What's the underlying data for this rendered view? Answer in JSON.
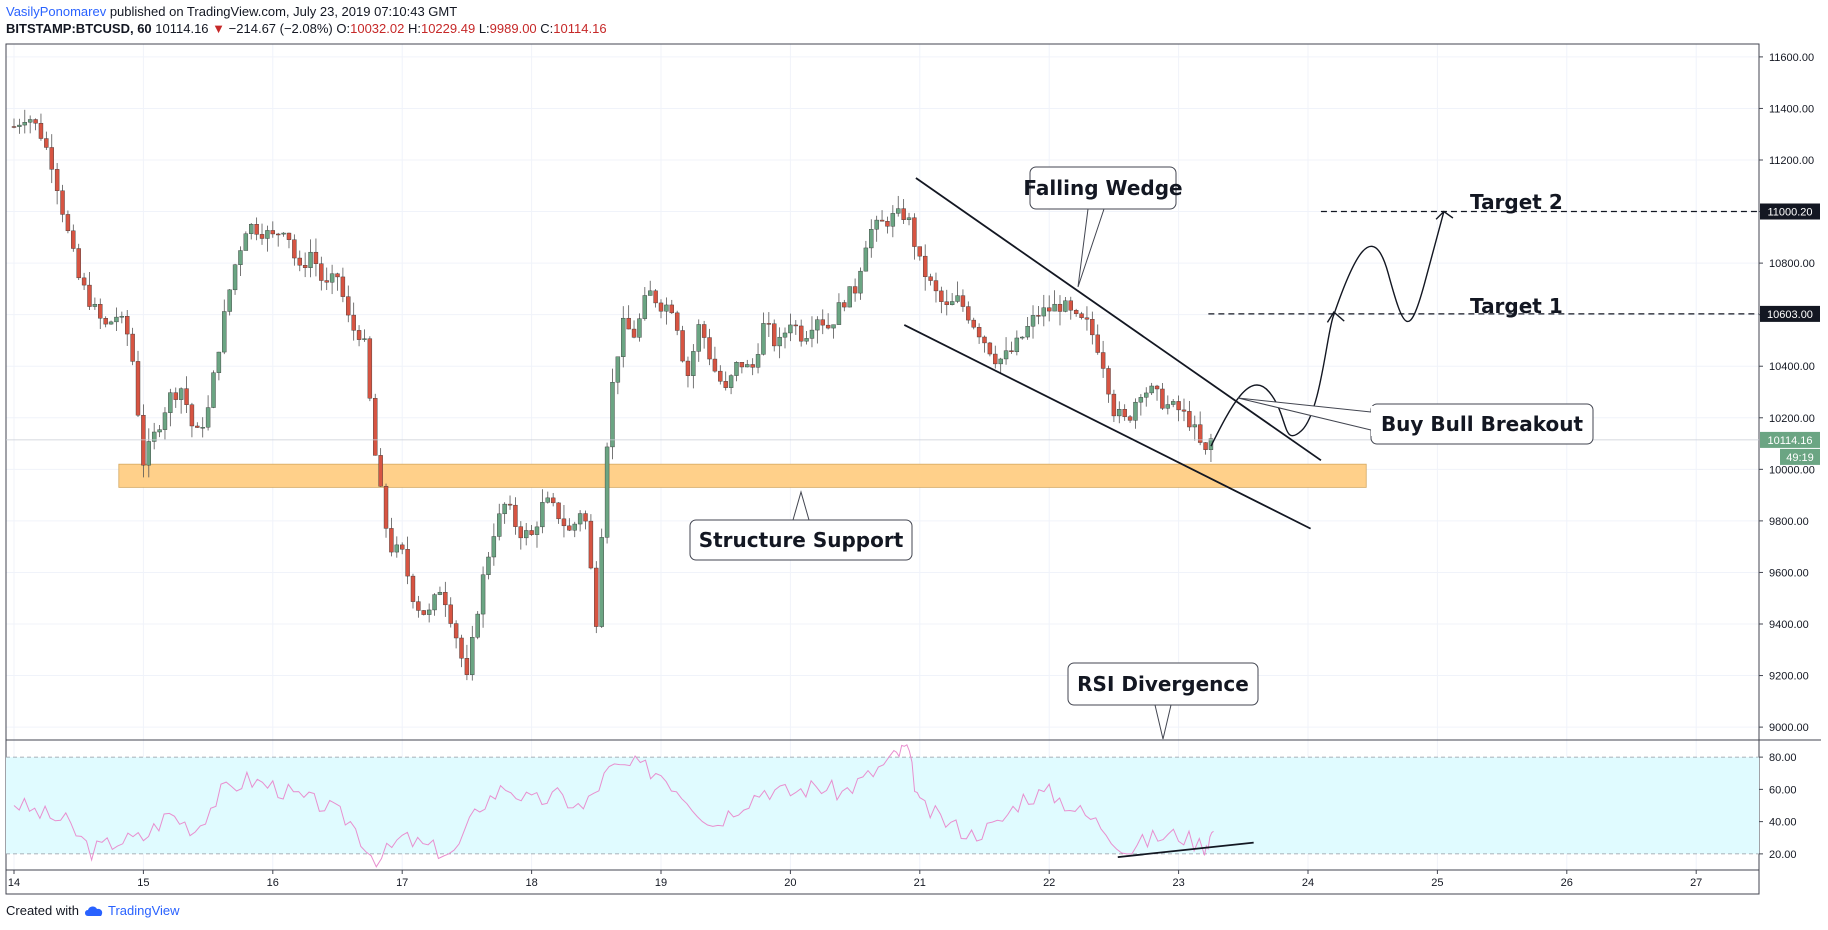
{
  "header": {
    "author": "VasilyPonomarev",
    "published": "published on TradingView.com, July 23, 2019 07:10:43 GMT",
    "symbol": "BITSTAMP:BTCUSD, 60",
    "last": "10114.16",
    "change_arrow": "▼",
    "change": "−214.67 (−2.08%)",
    "o_label": "O:",
    "o_value": "10032.02",
    "h_label": "H:",
    "h_value": "10229.49",
    "l_label": "L:",
    "l_value": "9989.00",
    "c_label": "C:",
    "c_value": "10114.16"
  },
  "footer": {
    "created_with": "Created with",
    "brand": "TradingView",
    "brand_icon": "tradingview-cloud-icon"
  },
  "colors": {
    "up": "#6ba583",
    "down": "#d75442",
    "support_zone": "#ffd08a",
    "rsi_band": "#e0fbff",
    "rsi_line": "#e88fcf",
    "price_tag": "#6ba583",
    "target_tag": "#131722"
  },
  "chart_data": {
    "type": "candlestick",
    "title": "",
    "x_ticks": [
      "14",
      "15",
      "16",
      "17",
      "18",
      "19",
      "20",
      "21",
      "22",
      "23",
      "24",
      "25",
      "26",
      "27"
    ],
    "y_ticks": [
      "11600.00",
      "11400.00",
      "11200.00",
      "11000.00",
      "10800.00",
      "10600.00",
      "10400.00",
      "10200.00",
      "10000.00",
      "9800.00",
      "9600.00",
      "9400.00",
      "9200.00",
      "9000.00"
    ],
    "ylim": [
      8950,
      11650
    ],
    "price_path": [
      [
        14.0,
        11330
      ],
      [
        14.1,
        11380
      ],
      [
        14.2,
        11310
      ],
      [
        14.3,
        11180
      ],
      [
        14.4,
        10950
      ],
      [
        14.5,
        10740
      ],
      [
        14.6,
        10640
      ],
      [
        14.7,
        10550
      ],
      [
        14.8,
        10600
      ],
      [
        14.9,
        10500
      ],
      [
        15.0,
        10030
      ],
      [
        15.1,
        10150
      ],
      [
        15.2,
        10280
      ],
      [
        15.3,
        10320
      ],
      [
        15.4,
        10120
      ],
      [
        15.5,
        10230
      ],
      [
        15.6,
        10530
      ],
      [
        15.7,
        10780
      ],
      [
        15.8,
        10950
      ],
      [
        15.9,
        10930
      ],
      [
        16.0,
        10900
      ],
      [
        16.1,
        10950
      ],
      [
        16.2,
        10760
      ],
      [
        16.3,
        10850
      ],
      [
        16.4,
        10700
      ],
      [
        16.5,
        10750
      ],
      [
        16.6,
        10550
      ],
      [
        16.7,
        10520
      ],
      [
        16.8,
        10010
      ],
      [
        16.9,
        9700
      ],
      [
        17.0,
        9670
      ],
      [
        17.1,
        9480
      ],
      [
        17.2,
        9430
      ],
      [
        17.3,
        9550
      ],
      [
        17.4,
        9390
      ],
      [
        17.5,
        9180
      ],
      [
        17.6,
        9520
      ],
      [
        17.7,
        9750
      ],
      [
        17.8,
        9870
      ],
      [
        17.9,
        9760
      ],
      [
        18.0,
        9740
      ],
      [
        18.1,
        9880
      ],
      [
        18.2,
        9830
      ],
      [
        18.3,
        9750
      ],
      [
        18.4,
        9870
      ],
      [
        18.5,
        9420
      ],
      [
        18.6,
        10250
      ],
      [
        18.7,
        10560
      ],
      [
        18.8,
        10520
      ],
      [
        18.9,
        10690
      ],
      [
        19.0,
        10640
      ],
      [
        19.1,
        10630
      ],
      [
        19.2,
        10350
      ],
      [
        19.3,
        10570
      ],
      [
        19.4,
        10400
      ],
      [
        19.5,
        10300
      ],
      [
        19.6,
        10420
      ],
      [
        19.7,
        10380
      ],
      [
        19.8,
        10570
      ],
      [
        19.9,
        10470
      ],
      [
        20.0,
        10580
      ],
      [
        20.1,
        10510
      ],
      [
        20.2,
        10600
      ],
      [
        20.3,
        10550
      ],
      [
        20.4,
        10650
      ],
      [
        20.5,
        10700
      ],
      [
        20.6,
        10920
      ],
      [
        20.7,
        10950
      ],
      [
        20.8,
        10980
      ],
      [
        20.9,
        10990
      ],
      [
        21.0,
        10800
      ],
      [
        21.1,
        10700
      ],
      [
        21.2,
        10620
      ],
      [
        21.3,
        10660
      ],
      [
        21.4,
        10580
      ],
      [
        21.5,
        10500
      ],
      [
        21.6,
        10420
      ],
      [
        21.7,
        10450
      ],
      [
        21.8,
        10520
      ],
      [
        21.9,
        10600
      ],
      [
        22.0,
        10620
      ],
      [
        22.1,
        10640
      ],
      [
        22.2,
        10580
      ],
      [
        22.3,
        10560
      ],
      [
        22.4,
        10450
      ],
      [
        22.5,
        10230
      ],
      [
        22.6,
        10180
      ],
      [
        22.7,
        10310
      ],
      [
        22.8,
        10300
      ],
      [
        22.9,
        10250
      ],
      [
        23.0,
        10230
      ],
      [
        23.1,
        10180
      ],
      [
        23.2,
        10050
      ],
      [
        23.25,
        10114
      ]
    ],
    "rsi": {
      "ticks": [
        "80.00",
        "60.00",
        "40.00",
        "20.00"
      ],
      "ylim": [
        10,
        90
      ],
      "band": [
        20,
        80
      ],
      "values": [
        [
          14.0,
          52
        ],
        [
          14.2,
          45
        ],
        [
          14.4,
          40
        ],
        [
          14.6,
          22
        ],
        [
          14.8,
          28
        ],
        [
          15.0,
          30
        ],
        [
          15.2,
          45
        ],
        [
          15.4,
          35
        ],
        [
          15.6,
          58
        ],
        [
          15.8,
          66
        ],
        [
          16.0,
          62
        ],
        [
          16.2,
          55
        ],
        [
          16.4,
          50
        ],
        [
          16.6,
          40
        ],
        [
          16.8,
          15
        ],
        [
          17.0,
          30
        ],
        [
          17.2,
          24
        ],
        [
          17.4,
          20
        ],
        [
          17.6,
          50
        ],
        [
          17.8,
          62
        ],
        [
          18.0,
          52
        ],
        [
          18.2,
          56
        ],
        [
          18.4,
          48
        ],
        [
          18.6,
          72
        ],
        [
          18.8,
          75
        ],
        [
          19.0,
          70
        ],
        [
          19.2,
          55
        ],
        [
          19.4,
          38
        ],
        [
          19.6,
          50
        ],
        [
          19.8,
          60
        ],
        [
          20.0,
          58
        ],
        [
          20.2,
          62
        ],
        [
          20.4,
          58
        ],
        [
          20.6,
          68
        ],
        [
          20.8,
          80
        ],
        [
          20.9,
          86
        ],
        [
          21.0,
          50
        ],
        [
          21.2,
          40
        ],
        [
          21.4,
          32
        ],
        [
          21.6,
          38
        ],
        [
          21.8,
          55
        ],
        [
          22.0,
          58
        ],
        [
          22.2,
          48
        ],
        [
          22.4,
          38
        ],
        [
          22.6,
          22
        ],
        [
          22.8,
          30
        ],
        [
          23.0,
          32
        ],
        [
          23.2,
          25
        ],
        [
          23.27,
          34
        ]
      ]
    },
    "support_zone": [
      9930,
      10020
    ],
    "annotations": {
      "falling_wedge": "Falling Wedge",
      "structure_support": "Structure Support",
      "buy_bull_breakout": "Buy Bull Breakout",
      "rsi_divergence": "RSI Divergence",
      "target1": "Target 1",
      "target2": "Target 2"
    },
    "price_tags": {
      "last_price": "10114.16",
      "countdown": "49:19",
      "target1_price": "10603.00",
      "target2_price": "11000.20"
    },
    "levels": {
      "target1": 10603,
      "target2": 11000.2,
      "last": 10114.16
    }
  }
}
